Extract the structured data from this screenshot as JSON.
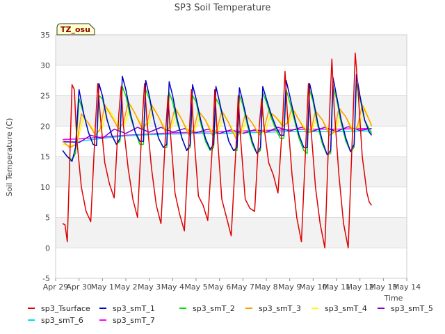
{
  "chart_data": {
    "type": "line",
    "title": "SP3 Soil Temperature",
    "xlabel": "Time",
    "ylabel": "Soil Temperature (C)",
    "ylim": [
      -5,
      35
    ],
    "yticks": [
      -5,
      0,
      5,
      10,
      15,
      20,
      25,
      30,
      35
    ],
    "xlim": [
      0,
      15
    ],
    "xticks": [
      0,
      1,
      2,
      3,
      4,
      5,
      6,
      7,
      8,
      9,
      10,
      11,
      12,
      13,
      14,
      15
    ],
    "xtick_labels": [
      "Apr 29",
      "Apr 30",
      "May 1",
      "May 2",
      "May 3",
      "May 4",
      "May 5",
      "May 6",
      "May 7",
      "May 8",
      "May 9",
      "May 10",
      "May 11",
      "May 12",
      "May 13",
      "May 14"
    ],
    "x_unit": "days since Apr 29",
    "badge": "TZ_osu",
    "series": [
      {
        "name": "sp3_Tsurface",
        "color": "#dd0000",
        "x": [
          0.3,
          0.4,
          0.5,
          0.6,
          0.7,
          0.8,
          0.9,
          1.1,
          1.3,
          1.5,
          1.7,
          1.8,
          1.9,
          2.1,
          2.3,
          2.5,
          2.7,
          2.8,
          2.9,
          3.1,
          3.3,
          3.5,
          3.7,
          3.8,
          3.9,
          4.1,
          4.3,
          4.5,
          4.7,
          4.8,
          4.9,
          5.1,
          5.3,
          5.5,
          5.7,
          5.8,
          5.9,
          6.1,
          6.3,
          6.5,
          6.7,
          6.8,
          6.9,
          7.1,
          7.3,
          7.5,
          7.7,
          7.8,
          7.9,
          8.1,
          8.3,
          8.5,
          8.7,
          8.8,
          8.9,
          9.1,
          9.3,
          9.5,
          9.7,
          9.8,
          9.9,
          10.1,
          10.3,
          10.5,
          10.7,
          10.8,
          10.9,
          11.1,
          11.3,
          11.5,
          11.7,
          11.8,
          11.9,
          12.1,
          12.3,
          12.5,
          12.7,
          12.8,
          12.9,
          13.1,
          13.3,
          13.4,
          13.5
        ],
        "values": [
          4.0,
          3.8,
          1.0,
          14.0,
          26.8,
          26.0,
          18.0,
          10.0,
          6.0,
          4.3,
          20.0,
          27.0,
          22.0,
          14.0,
          10.5,
          8.2,
          22.0,
          26.5,
          20.0,
          13.0,
          8.0,
          5.0,
          21.0,
          27.0,
          21.0,
          13.0,
          7.0,
          4.0,
          19.0,
          25.0,
          19.0,
          9.0,
          5.5,
          2.8,
          18.0,
          26.0,
          19.0,
          8.5,
          7.0,
          4.5,
          17.0,
          26.0,
          19.0,
          8.0,
          5.0,
          2.0,
          16.0,
          25.0,
          18.0,
          8.0,
          6.5,
          6.0,
          20.0,
          24.5,
          20.0,
          14.0,
          12.0,
          9.0,
          21.0,
          29.0,
          22.0,
          12.0,
          5.0,
          1.0,
          18.0,
          27.0,
          20.0,
          10.0,
          4.0,
          0.0,
          22.0,
          31.0,
          23.0,
          12.0,
          4.0,
          0.0,
          21.0,
          32.0,
          27.0,
          15.0,
          9.0,
          7.5,
          7.0
        ]
      },
      {
        "name": "sp3_smT_1",
        "color": "#0000cc",
        "x": [
          0.3,
          0.5,
          0.7,
          0.85,
          1.0,
          1.2,
          1.4,
          1.6,
          1.75,
          1.85,
          2.0,
          2.2,
          2.4,
          2.6,
          2.75,
          2.85,
          3.0,
          3.2,
          3.4,
          3.6,
          3.75,
          3.85,
          4.0,
          4.2,
          4.4,
          4.6,
          4.75,
          4.85,
          5.0,
          5.2,
          5.4,
          5.6,
          5.75,
          5.85,
          6.0,
          6.2,
          6.4,
          6.6,
          6.75,
          6.85,
          7.0,
          7.2,
          7.4,
          7.6,
          7.75,
          7.85,
          8.0,
          8.2,
          8.4,
          8.6,
          8.75,
          8.85,
          9.0,
          9.2,
          9.4,
          9.6,
          9.75,
          9.85,
          10.0,
          10.2,
          10.4,
          10.6,
          10.75,
          10.85,
          11.0,
          11.2,
          11.4,
          11.6,
          11.75,
          11.85,
          12.0,
          12.2,
          12.4,
          12.6,
          12.75,
          12.85,
          13.0,
          13.2,
          13.4,
          13.5
        ],
        "values": [
          16.0,
          15.0,
          14.2,
          16.5,
          26.0,
          22.0,
          19.0,
          17.0,
          16.8,
          27.0,
          25.0,
          21.0,
          18.5,
          17.0,
          18.0,
          28.2,
          26.0,
          22.0,
          19.0,
          17.5,
          17.5,
          27.5,
          25.0,
          21.0,
          18.0,
          16.5,
          17.0,
          27.3,
          25.0,
          21.0,
          18.0,
          16.0,
          17.0,
          26.8,
          24.5,
          21.0,
          18.0,
          16.2,
          17.0,
          26.5,
          24.0,
          20.5,
          17.5,
          16.0,
          16.5,
          26.3,
          24.0,
          20.5,
          17.5,
          15.5,
          16.5,
          26.5,
          24.5,
          22.0,
          20.0,
          18.5,
          18.5,
          27.5,
          25.0,
          21.5,
          18.5,
          16.5,
          16.5,
          27.0,
          24.5,
          20.5,
          17.5,
          15.3,
          16.0,
          28.0,
          25.0,
          21.0,
          18.0,
          15.8,
          17.0,
          28.5,
          25.0,
          21.0,
          19.0,
          18.5
        ]
      },
      {
        "name": "sp3_smT_2",
        "color": "#00dd00",
        "x": [
          0.3,
          0.5,
          0.7,
          0.85,
          1.0,
          1.2,
          1.4,
          1.6,
          1.75,
          1.85,
          2.0,
          2.2,
          2.4,
          2.6,
          2.75,
          2.85,
          3.0,
          3.2,
          3.4,
          3.6,
          3.75,
          3.85,
          4.0,
          4.2,
          4.4,
          4.6,
          4.75,
          4.85,
          5.0,
          5.2,
          5.4,
          5.6,
          5.75,
          5.85,
          6.0,
          6.2,
          6.4,
          6.6,
          6.75,
          6.85,
          7.0,
          7.2,
          7.4,
          7.6,
          7.75,
          7.85,
          8.0,
          8.2,
          8.4,
          8.6,
          8.75,
          8.85,
          9.0,
          9.2,
          9.4,
          9.6,
          9.75,
          9.85,
          10.0,
          10.2,
          10.4,
          10.6,
          10.75,
          10.85,
          11.0,
          11.2,
          11.4,
          11.6,
          11.75,
          11.85,
          12.0,
          12.2,
          12.4,
          12.6,
          12.75,
          12.85,
          13.0,
          13.2,
          13.4,
          13.5
        ],
        "values": [
          16.0,
          15.0,
          14.5,
          15.5,
          24.5,
          22.0,
          19.0,
          17.0,
          16.8,
          25.0,
          24.5,
          21.0,
          18.5,
          17.0,
          17.5,
          26.5,
          25.0,
          21.5,
          19.0,
          17.0,
          17.0,
          26.0,
          24.5,
          21.0,
          18.0,
          16.5,
          16.5,
          25.5,
          24.0,
          20.5,
          18.0,
          16.0,
          16.5,
          25.0,
          24.0,
          20.5,
          17.5,
          16.0,
          16.5,
          24.5,
          23.5,
          20.5,
          17.5,
          16.0,
          16.0,
          25.0,
          23.5,
          20.0,
          17.0,
          15.5,
          16.0,
          25.5,
          24.0,
          21.5,
          19.5,
          18.0,
          18.0,
          26.0,
          24.0,
          21.0,
          18.0,
          16.0,
          15.5,
          26.0,
          24.0,
          20.0,
          17.0,
          15.3,
          15.5,
          26.5,
          24.5,
          20.5,
          17.5,
          15.8,
          16.5,
          27.0,
          24.5,
          21.0,
          19.5,
          18.8
        ]
      },
      {
        "name": "sp3_smT_3",
        "color": "#ff9900",
        "x": [
          0.3,
          0.6,
          0.9,
          1.1,
          1.4,
          1.7,
          1.9,
          2.1,
          2.4,
          2.7,
          2.9,
          3.1,
          3.4,
          3.7,
          3.9,
          4.1,
          4.4,
          4.7,
          4.9,
          5.1,
          5.4,
          5.7,
          5.9,
          6.1,
          6.4,
          6.7,
          6.9,
          7.1,
          7.4,
          7.7,
          7.9,
          8.1,
          8.4,
          8.7,
          8.9,
          9.1,
          9.4,
          9.7,
          9.9,
          10.1,
          10.4,
          10.7,
          10.9,
          11.1,
          11.4,
          11.7,
          11.9,
          12.1,
          12.4,
          12.7,
          12.9,
          13.1,
          13.4,
          13.5
        ],
        "values": [
          17.5,
          16.5,
          17.0,
          22.0,
          20.5,
          18.5,
          19.5,
          23.5,
          21.5,
          19.5,
          20.5,
          24.0,
          22.0,
          19.5,
          20.5,
          23.5,
          21.5,
          19.0,
          20.0,
          23.0,
          21.0,
          18.5,
          19.5,
          22.5,
          21.0,
          18.5,
          19.5,
          22.5,
          20.5,
          18.0,
          19.0,
          22.0,
          20.5,
          18.5,
          19.5,
          22.5,
          21.5,
          20.0,
          20.5,
          23.0,
          21.0,
          19.0,
          19.0,
          22.5,
          21.0,
          18.5,
          19.0,
          23.0,
          21.5,
          19.0,
          20.0,
          23.5,
          21.0,
          20.0
        ]
      },
      {
        "name": "sp3_smT_4",
        "color": "#ffff00",
        "x": [
          0.3,
          0.6,
          0.9,
          1.2,
          1.4,
          1.7,
          1.95,
          2.2,
          2.4,
          2.7,
          2.95,
          3.2,
          3.4,
          3.7,
          3.95,
          4.2,
          4.4,
          4.7,
          4.95,
          5.2,
          5.4,
          5.7,
          5.95,
          6.2,
          6.4,
          6.7,
          6.95,
          7.2,
          7.4,
          7.7,
          7.95,
          8.2,
          8.4,
          8.7,
          8.95,
          9.2,
          9.4,
          9.7,
          9.95,
          10.2,
          10.4,
          10.7,
          10.95,
          11.2,
          11.4,
          11.7,
          11.95,
          12.2,
          12.4,
          12.7,
          12.95,
          13.2,
          13.4,
          13.5
        ],
        "values": [
          17.0,
          16.8,
          17.0,
          21.5,
          20.5,
          19.0,
          19.2,
          23.0,
          22.0,
          20.0,
          20.3,
          23.5,
          22.0,
          20.0,
          20.3,
          23.0,
          21.5,
          19.5,
          19.8,
          22.5,
          21.0,
          19.0,
          19.3,
          22.0,
          21.0,
          19.0,
          19.2,
          22.0,
          20.5,
          18.5,
          18.8,
          21.5,
          20.5,
          18.8,
          19.0,
          22.0,
          21.5,
          20.5,
          20.5,
          22.5,
          21.0,
          19.5,
          19.3,
          22.0,
          21.0,
          19.0,
          19.0,
          22.5,
          21.5,
          19.5,
          19.8,
          23.0,
          21.0,
          20.2
        ]
      },
      {
        "name": "sp3_smT_5",
        "color": "#8800cc",
        "x": [
          0.3,
          1.0,
          1.5,
          2.0,
          2.5,
          3.0,
          3.5,
          4.0,
          4.5,
          5.0,
          5.5,
          6.0,
          6.5,
          7.0,
          7.5,
          8.0,
          8.5,
          9.0,
          9.5,
          10.0,
          10.5,
          11.0,
          11.5,
          12.0,
          12.5,
          13.0,
          13.5
        ],
        "values": [
          17.5,
          17.3,
          18.5,
          18.0,
          19.5,
          18.8,
          19.8,
          19.0,
          19.8,
          19.0,
          19.6,
          18.9,
          19.5,
          18.8,
          19.4,
          18.8,
          19.4,
          19.0,
          19.8,
          19.2,
          19.8,
          19.2,
          19.8,
          19.1,
          19.9,
          19.3,
          19.6
        ]
      },
      {
        "name": "sp3_smT_6",
        "color": "#00dddd",
        "x": [
          0.3,
          1.0,
          2.0,
          3.0,
          4.0,
          5.0,
          6.0,
          7.0,
          8.0,
          9.0,
          10.0,
          11.0,
          12.0,
          13.0,
          13.5
        ],
        "values": [
          17.3,
          17.5,
          18.0,
          18.4,
          18.6,
          18.7,
          18.8,
          18.8,
          18.9,
          19.0,
          19.1,
          19.1,
          19.1,
          19.2,
          19.2
        ]
      },
      {
        "name": "sp3_smT_7",
        "color": "#ff00ff",
        "x": [
          0.3,
          1.0,
          2.0,
          3.0,
          4.0,
          5.0,
          6.0,
          7.0,
          8.0,
          9.0,
          10.0,
          11.0,
          12.0,
          13.0,
          13.5
        ],
        "values": [
          17.8,
          17.9,
          18.2,
          18.5,
          18.7,
          18.9,
          19.0,
          19.1,
          19.2,
          19.3,
          19.4,
          19.5,
          19.5,
          19.6,
          19.6
        ]
      }
    ]
  }
}
